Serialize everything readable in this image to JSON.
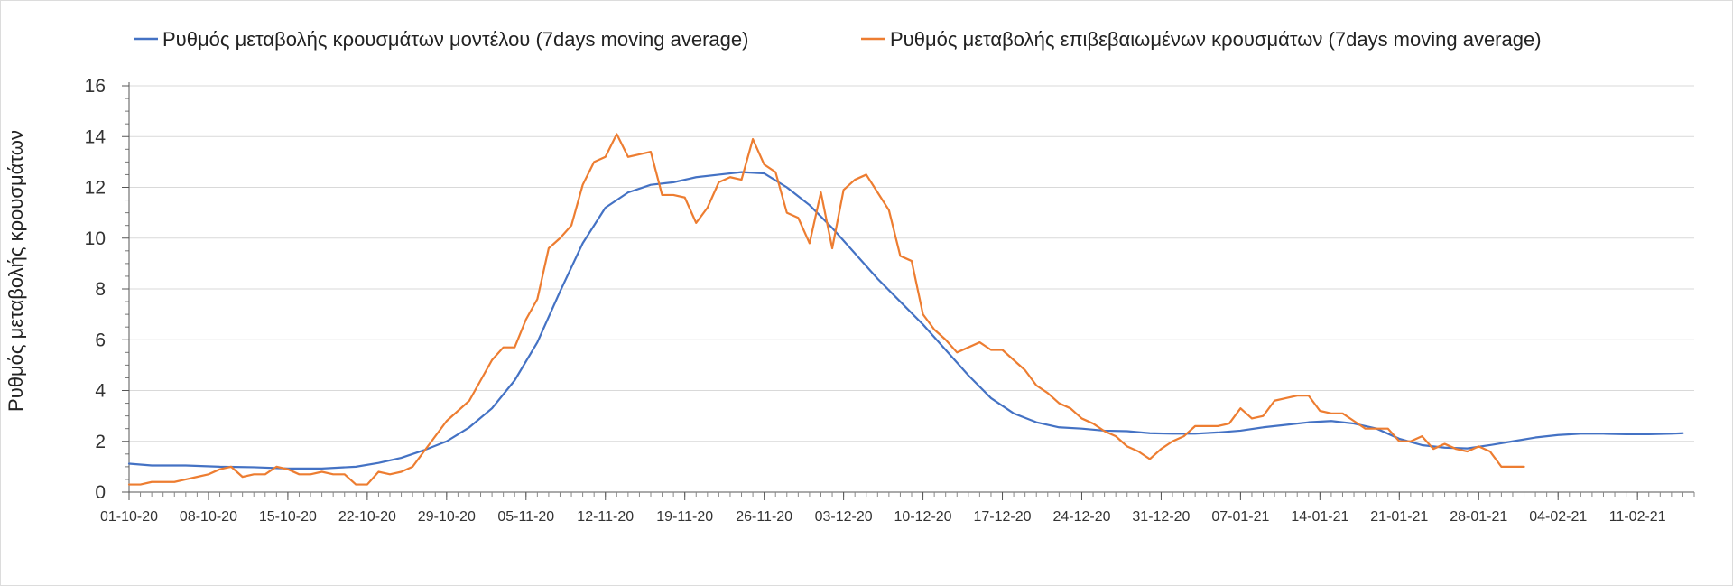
{
  "chart_data": {
    "type": "line",
    "title": "",
    "ylabel": "Ρυθμός μεταβολής κρουσμάτων",
    "xlabel": "",
    "ylim": [
      0,
      16
    ],
    "yticks": [
      0,
      2,
      4,
      6,
      8,
      10,
      12,
      14,
      16
    ],
    "grid": true,
    "legend_position": "top",
    "x_start": "01-10-20",
    "x_tick_labels": [
      "01-10-20",
      "08-10-20",
      "15-10-20",
      "22-10-20",
      "29-10-20",
      "05-11-20",
      "12-11-20",
      "19-11-20",
      "26-11-20",
      "03-12-20",
      "10-12-20",
      "17-12-20",
      "24-12-20",
      "31-12-20",
      "07-01-21",
      "14-01-21",
      "21-01-21",
      "28-01-21",
      "04-02-21",
      "11-02-21"
    ],
    "x_tick_day_offsets": [
      0,
      7,
      14,
      21,
      28,
      35,
      42,
      49,
      56,
      63,
      70,
      77,
      84,
      91,
      98,
      105,
      112,
      119,
      126,
      133
    ],
    "series": [
      {
        "name": "Ρυθμός μεταβολής κρουσμάτων μοντέλου (7days moving average)",
        "color": "#4472c4",
        "points": [
          [
            0,
            1.12
          ],
          [
            2,
            1.05
          ],
          [
            5,
            1.05
          ],
          [
            8,
            1.0
          ],
          [
            11,
            0.98
          ],
          [
            14,
            0.93
          ],
          [
            17,
            0.93
          ],
          [
            20,
            1.0
          ],
          [
            22,
            1.15
          ],
          [
            24,
            1.35
          ],
          [
            26,
            1.65
          ],
          [
            28,
            2.0
          ],
          [
            30,
            2.55
          ],
          [
            32,
            3.3
          ],
          [
            34,
            4.4
          ],
          [
            36,
            5.9
          ],
          [
            38,
            7.9
          ],
          [
            40,
            9.8
          ],
          [
            42,
            11.2
          ],
          [
            44,
            11.8
          ],
          [
            46,
            12.1
          ],
          [
            48,
            12.2
          ],
          [
            50,
            12.4
          ],
          [
            52,
            12.5
          ],
          [
            54,
            12.6
          ],
          [
            56,
            12.55
          ],
          [
            58,
            12.0
          ],
          [
            60,
            11.3
          ],
          [
            62,
            10.4
          ],
          [
            64,
            9.4
          ],
          [
            66,
            8.4
          ],
          [
            68,
            7.5
          ],
          [
            70,
            6.6
          ],
          [
            72,
            5.6
          ],
          [
            74,
            4.6
          ],
          [
            76,
            3.7
          ],
          [
            78,
            3.1
          ],
          [
            80,
            2.75
          ],
          [
            82,
            2.55
          ],
          [
            84,
            2.5
          ],
          [
            86,
            2.42
          ],
          [
            88,
            2.4
          ],
          [
            90,
            2.32
          ],
          [
            92,
            2.3
          ],
          [
            94,
            2.3
          ],
          [
            96,
            2.35
          ],
          [
            98,
            2.42
          ],
          [
            100,
            2.55
          ],
          [
            102,
            2.65
          ],
          [
            104,
            2.75
          ],
          [
            106,
            2.8
          ],
          [
            108,
            2.7
          ],
          [
            110,
            2.5
          ],
          [
            112,
            2.1
          ],
          [
            114,
            1.85
          ],
          [
            116,
            1.75
          ],
          [
            118,
            1.72
          ],
          [
            120,
            1.85
          ],
          [
            122,
            2.0
          ],
          [
            124,
            2.15
          ],
          [
            126,
            2.25
          ],
          [
            128,
            2.3
          ],
          [
            130,
            2.3
          ],
          [
            132,
            2.28
          ],
          [
            134,
            2.28
          ],
          [
            136,
            2.3
          ],
          [
            137,
            2.32
          ]
        ]
      },
      {
        "name": "Ρυθμός μεταβολής επιβεβαιωμένων κρουσμάτων (7days moving average)",
        "color": "#ed7d31",
        "points": [
          [
            0,
            0.3
          ],
          [
            1,
            0.3
          ],
          [
            2,
            0.4
          ],
          [
            3,
            0.4
          ],
          [
            4,
            0.4
          ],
          [
            5,
            0.5
          ],
          [
            6,
            0.6
          ],
          [
            7,
            0.7
          ],
          [
            8,
            0.9
          ],
          [
            9,
            1.0
          ],
          [
            10,
            0.6
          ],
          [
            11,
            0.7
          ],
          [
            12,
            0.7
          ],
          [
            13,
            1.0
          ],
          [
            14,
            0.9
          ],
          [
            15,
            0.7
          ],
          [
            16,
            0.7
          ],
          [
            17,
            0.8
          ],
          [
            18,
            0.7
          ],
          [
            19,
            0.7
          ],
          [
            20,
            0.3
          ],
          [
            21,
            0.3
          ],
          [
            22,
            0.8
          ],
          [
            23,
            0.7
          ],
          [
            24,
            0.8
          ],
          [
            25,
            1.0
          ],
          [
            26,
            1.6
          ],
          [
            27,
            2.2
          ],
          [
            28,
            2.8
          ],
          [
            29,
            3.2
          ],
          [
            30,
            3.6
          ],
          [
            31,
            4.4
          ],
          [
            32,
            5.2
          ],
          [
            33,
            5.7
          ],
          [
            34,
            5.7
          ],
          [
            35,
            6.8
          ],
          [
            36,
            7.6
          ],
          [
            37,
            9.6
          ],
          [
            38,
            10.0
          ],
          [
            39,
            10.5
          ],
          [
            40,
            12.1
          ],
          [
            41,
            13.0
          ],
          [
            42,
            13.2
          ],
          [
            43,
            14.1
          ],
          [
            44,
            13.2
          ],
          [
            45,
            13.3
          ],
          [
            46,
            13.4
          ],
          [
            47,
            11.7
          ],
          [
            48,
            11.7
          ],
          [
            49,
            11.6
          ],
          [
            50,
            10.6
          ],
          [
            51,
            11.2
          ],
          [
            52,
            12.2
          ],
          [
            53,
            12.4
          ],
          [
            54,
            12.3
          ],
          [
            55,
            13.9
          ],
          [
            56,
            12.9
          ],
          [
            57,
            12.6
          ],
          [
            58,
            11.0
          ],
          [
            59,
            10.8
          ],
          [
            60,
            9.8
          ],
          [
            61,
            11.8
          ],
          [
            62,
            9.6
          ],
          [
            63,
            11.9
          ],
          [
            64,
            12.3
          ],
          [
            65,
            12.5
          ],
          [
            66,
            11.8
          ],
          [
            67,
            11.1
          ],
          [
            68,
            9.3
          ],
          [
            69,
            9.1
          ],
          [
            70,
            7.0
          ],
          [
            71,
            6.4
          ],
          [
            72,
            6.0
          ],
          [
            73,
            5.5
          ],
          [
            74,
            5.7
          ],
          [
            75,
            5.9
          ],
          [
            76,
            5.6
          ],
          [
            77,
            5.6
          ],
          [
            78,
            5.2
          ],
          [
            79,
            4.8
          ],
          [
            80,
            4.2
          ],
          [
            81,
            3.9
          ],
          [
            82,
            3.5
          ],
          [
            83,
            3.3
          ],
          [
            84,
            2.9
          ],
          [
            85,
            2.7
          ],
          [
            86,
            2.4
          ],
          [
            87,
            2.2
          ],
          [
            88,
            1.8
          ],
          [
            89,
            1.6
          ],
          [
            90,
            1.3
          ],
          [
            91,
            1.7
          ],
          [
            92,
            2.0
          ],
          [
            93,
            2.2
          ],
          [
            94,
            2.6
          ],
          [
            95,
            2.6
          ],
          [
            96,
            2.6
          ],
          [
            97,
            2.7
          ],
          [
            98,
            3.3
          ],
          [
            99,
            2.9
          ],
          [
            100,
            3.0
          ],
          [
            101,
            3.6
          ],
          [
            102,
            3.7
          ],
          [
            103,
            3.8
          ],
          [
            104,
            3.8
          ],
          [
            105,
            3.2
          ],
          [
            106,
            3.1
          ],
          [
            107,
            3.1
          ],
          [
            108,
            2.8
          ],
          [
            109,
            2.5
          ],
          [
            110,
            2.5
          ],
          [
            111,
            2.5
          ],
          [
            112,
            2.0
          ],
          [
            113,
            2.0
          ],
          [
            114,
            2.2
          ],
          [
            115,
            1.7
          ],
          [
            116,
            1.9
          ],
          [
            117,
            1.7
          ],
          [
            118,
            1.6
          ],
          [
            119,
            1.8
          ],
          [
            120,
            1.6
          ],
          [
            121,
            1.0
          ],
          [
            122,
            1.0
          ],
          [
            123,
            1.0
          ]
        ]
      }
    ]
  }
}
